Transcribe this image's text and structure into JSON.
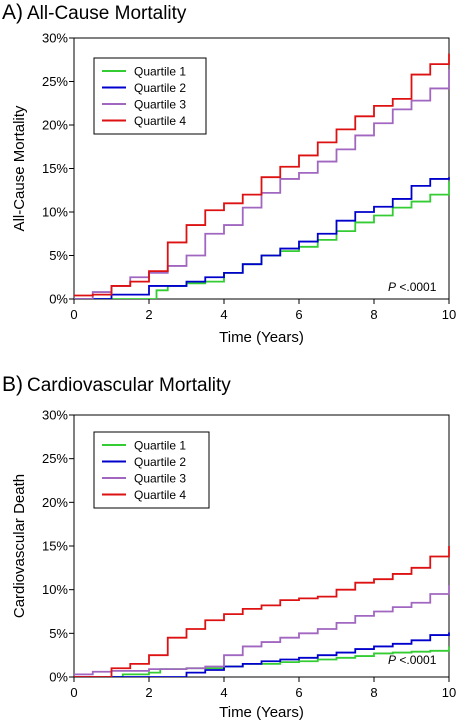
{
  "chart_data": [
    {
      "type": "line",
      "panel_letter": "A)",
      "title": "All-Cause Mortality",
      "xlabel": "Time (Years)",
      "ylabel": "All-Cause Mortality",
      "xlim": [
        0,
        10
      ],
      "ylim": [
        0,
        30
      ],
      "xticks": [
        "0",
        "2",
        "4",
        "6",
        "8",
        "10"
      ],
      "yticks": [
        "0%",
        "5%",
        "10%",
        "15%",
        "20%",
        "25%",
        "30%"
      ],
      "grid": false,
      "legend_position": "top-left",
      "annotation": {
        "italic": "P",
        "text": " <.0001",
        "position": "bottom-right"
      },
      "series": [
        {
          "name": "Quartile 1",
          "color": "#33cc33",
          "x": [
            0,
            1.5,
            2.2,
            2.5,
            3,
            3.5,
            4,
            4.5,
            5,
            5.5,
            6,
            6.5,
            7,
            7.5,
            8,
            8.5,
            9,
            9.5,
            10
          ],
          "y": [
            0,
            0,
            1.0,
            1.5,
            1.8,
            2.0,
            3.0,
            4.0,
            5.0,
            5.5,
            6.0,
            6.8,
            7.8,
            8.8,
            9.6,
            10.5,
            11.2,
            12.0,
            13.5
          ]
        },
        {
          "name": "Quartile 2",
          "color": "#0000cc",
          "x": [
            0,
            1,
            2,
            2.5,
            3,
            3.5,
            4,
            4.5,
            5,
            5.5,
            6,
            6.5,
            7,
            7.5,
            8,
            8.5,
            9,
            9.5,
            10
          ],
          "y": [
            0,
            0.5,
            1.5,
            1.5,
            2.0,
            2.5,
            3.0,
            4.0,
            5.0,
            5.8,
            6.6,
            7.5,
            9.0,
            10.0,
            10.6,
            11.5,
            13.0,
            13.8,
            14.0
          ]
        },
        {
          "name": "Quartile 3",
          "color": "#a066c0",
          "x": [
            0,
            0.5,
            1,
            1.5,
            2,
            2.5,
            3,
            3.5,
            4,
            4.5,
            5,
            5.5,
            6,
            6.5,
            7,
            7.5,
            8,
            8.5,
            9,
            9.5,
            10
          ],
          "y": [
            0,
            0.8,
            1.5,
            2.5,
            3.0,
            3.8,
            5.0,
            7.5,
            8.5,
            10.5,
            12.2,
            13.8,
            14.5,
            15.8,
            17.2,
            18.8,
            20.2,
            21.8,
            22.8,
            24.2,
            26.4
          ]
        },
        {
          "name": "Quartile 4",
          "color": "#dd1111",
          "x": [
            0,
            0.5,
            1,
            1.5,
            2,
            2.5,
            3,
            3.5,
            4,
            4.5,
            5,
            5.5,
            6,
            6.5,
            7,
            7.5,
            8,
            8.5,
            9,
            9.5,
            10
          ],
          "y": [
            0.4,
            0.5,
            1.5,
            2.0,
            3.2,
            6.5,
            8.5,
            10.2,
            11.0,
            12.0,
            14.0,
            15.2,
            16.5,
            18.0,
            19.5,
            21.0,
            22.2,
            23.0,
            25.8,
            27.0,
            28.2
          ]
        }
      ]
    },
    {
      "type": "line",
      "panel_letter": "B)",
      "title": "Cardiovascular Mortality",
      "xlabel": "Time (Years)",
      "ylabel": "Cardiovascular Death",
      "xlim": [
        0,
        10
      ],
      "ylim": [
        0,
        30
      ],
      "xticks": [
        "0",
        "2",
        "4",
        "6",
        "8",
        "10"
      ],
      "yticks": [
        "0%",
        "5%",
        "10%",
        "15%",
        "20%",
        "25%",
        "30%"
      ],
      "grid": false,
      "legend_position": "top-left",
      "annotation": {
        "italic": "P",
        "text": " <.0001",
        "position": "bottom-right"
      },
      "series": [
        {
          "name": "Quartile 1",
          "color": "#33cc33",
          "x": [
            0,
            1.3,
            2,
            2.3,
            3,
            4,
            4.5,
            5,
            5.5,
            6,
            6.5,
            7,
            7.5,
            8,
            8.5,
            9,
            9.5,
            10
          ],
          "y": [
            0,
            0.3,
            0.5,
            0.9,
            1.0,
            1.2,
            1.5,
            1.5,
            1.7,
            1.8,
            2.0,
            2.2,
            2.4,
            2.7,
            2.8,
            2.9,
            3.0,
            3.5
          ]
        },
        {
          "name": "Quartile 2",
          "color": "#0000cc",
          "x": [
            0,
            2,
            3,
            3.5,
            4,
            4.5,
            5,
            5.5,
            6,
            6.5,
            7,
            7.5,
            8,
            8.5,
            9,
            9.5,
            10
          ],
          "y": [
            0,
            0,
            0.5,
            0.8,
            1.2,
            1.5,
            1.8,
            2.0,
            2.2,
            2.5,
            2.8,
            3.2,
            3.5,
            3.8,
            4.2,
            4.8,
            5.1
          ]
        },
        {
          "name": "Quartile 3",
          "color": "#a066c0",
          "x": [
            0,
            0.5,
            1,
            2,
            3,
            3.5,
            4,
            4.5,
            5,
            5.5,
            6,
            6.5,
            7,
            7.5,
            8,
            8.5,
            9,
            9.5,
            10
          ],
          "y": [
            0.3,
            0.6,
            0.7,
            0.9,
            1.0,
            1.2,
            2.5,
            3.5,
            4.0,
            4.5,
            5.0,
            5.5,
            6.2,
            7.0,
            7.5,
            8.0,
            8.5,
            9.5,
            10.5
          ]
        },
        {
          "name": "Quartile 4",
          "color": "#dd1111",
          "x": [
            0,
            0.8,
            1,
            1.5,
            2,
            2.5,
            3,
            3.5,
            4,
            4.5,
            5,
            5.5,
            6,
            6.5,
            7,
            7.5,
            8,
            8.5,
            9,
            9.5,
            10
          ],
          "y": [
            0,
            0,
            1.0,
            1.5,
            2.5,
            4.5,
            5.5,
            6.5,
            7.2,
            7.8,
            8.2,
            8.8,
            9.0,
            9.2,
            10.0,
            10.8,
            11.2,
            11.8,
            12.5,
            13.8,
            15.0
          ]
        }
      ]
    }
  ]
}
